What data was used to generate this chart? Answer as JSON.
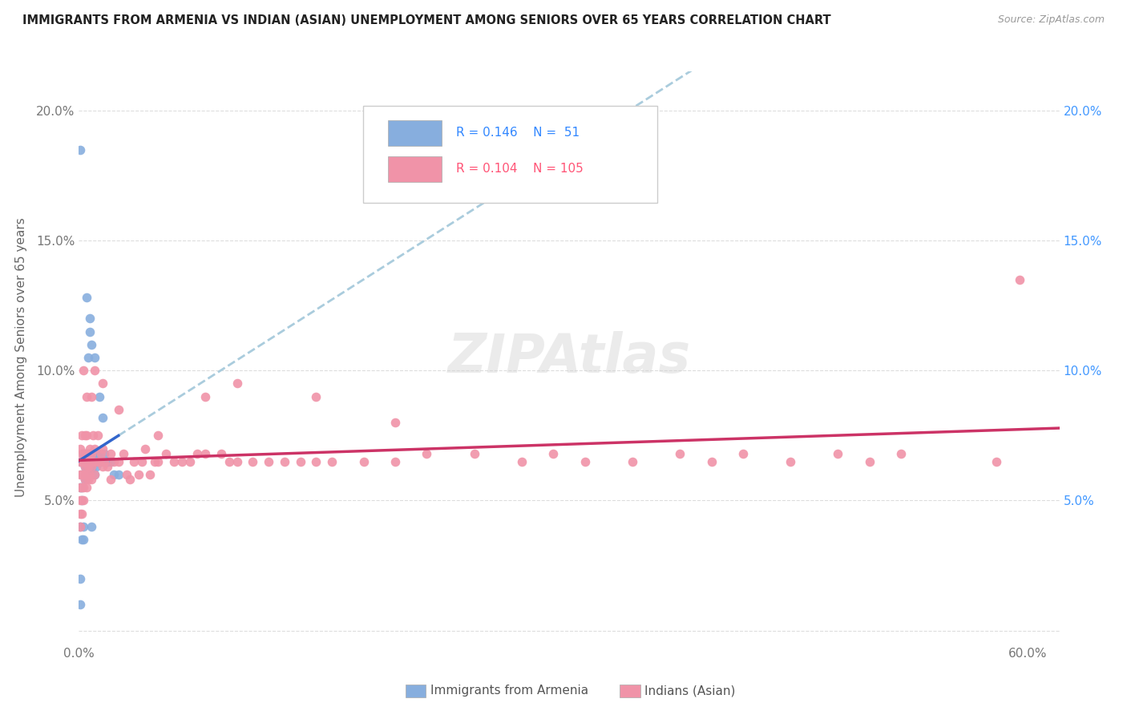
{
  "title": "IMMIGRANTS FROM ARMENIA VS INDIAN (ASIAN) UNEMPLOYMENT AMONG SENIORS OVER 65 YEARS CORRELATION CHART",
  "source": "Source: ZipAtlas.com",
  "ylabel": "Unemployment Among Seniors over 65 years",
  "xlabel_armenia": "Immigrants from Armenia",
  "xlabel_indian": "Indians (Asian)",
  "legend_armenia_R": "0.146",
  "legend_armenia_N": "51",
  "legend_indian_R": "0.104",
  "legend_indian_N": "105",
  "color_armenia": "#87AEDE",
  "color_indian": "#F093A8",
  "color_trendline_armenia": "#3366CC",
  "color_trendline_indian": "#CC3366",
  "color_trendline_dashed": "#AACCDD",
  "xlim": [
    0.0,
    0.62
  ],
  "ylim": [
    -0.005,
    0.215
  ],
  "yticks": [
    0.0,
    0.05,
    0.1,
    0.15,
    0.2
  ],
  "ytick_labels_left": [
    "",
    "5.0%",
    "10.0%",
    "15.0%",
    "20.0%"
  ],
  "ytick_labels_right": [
    "",
    "5.0%",
    "10.0%",
    "15.0%",
    "20.0%"
  ],
  "armenia_x": [
    0.001,
    0.001,
    0.001,
    0.001,
    0.001,
    0.002,
    0.002,
    0.002,
    0.002,
    0.003,
    0.003,
    0.003,
    0.003,
    0.004,
    0.004,
    0.004,
    0.005,
    0.005,
    0.005,
    0.006,
    0.006,
    0.007,
    0.007,
    0.007,
    0.008,
    0.008,
    0.009,
    0.01,
    0.01,
    0.011,
    0.011,
    0.012,
    0.013,
    0.014,
    0.015,
    0.016,
    0.018,
    0.02,
    0.022,
    0.025,
    0.001,
    0.002,
    0.003,
    0.004,
    0.005,
    0.006,
    0.007,
    0.008,
    0.01,
    0.012,
    0.018
  ],
  "armenia_y": [
    0.185,
    0.055,
    0.065,
    0.04,
    0.02,
    0.065,
    0.06,
    0.055,
    0.05,
    0.068,
    0.065,
    0.06,
    0.035,
    0.068,
    0.063,
    0.058,
    0.128,
    0.068,
    0.062,
    0.105,
    0.062,
    0.12,
    0.115,
    0.06,
    0.11,
    0.062,
    0.065,
    0.105,
    0.06,
    0.068,
    0.063,
    0.065,
    0.09,
    0.065,
    0.082,
    0.068,
    0.065,
    0.065,
    0.06,
    0.06,
    0.01,
    0.035,
    0.04,
    0.065,
    0.065,
    0.068,
    0.068,
    0.04,
    0.068,
    0.068,
    0.065
  ],
  "indian_x": [
    0.001,
    0.001,
    0.001,
    0.001,
    0.001,
    0.001,
    0.001,
    0.002,
    0.002,
    0.002,
    0.002,
    0.002,
    0.002,
    0.002,
    0.003,
    0.003,
    0.003,
    0.003,
    0.004,
    0.004,
    0.004,
    0.004,
    0.005,
    0.005,
    0.005,
    0.005,
    0.006,
    0.006,
    0.006,
    0.007,
    0.007,
    0.007,
    0.008,
    0.008,
    0.008,
    0.009,
    0.009,
    0.01,
    0.01,
    0.01,
    0.012,
    0.012,
    0.013,
    0.014,
    0.015,
    0.015,
    0.016,
    0.018,
    0.02,
    0.02,
    0.022,
    0.025,
    0.028,
    0.03,
    0.032,
    0.035,
    0.038,
    0.04,
    0.042,
    0.045,
    0.048,
    0.05,
    0.055,
    0.06,
    0.065,
    0.07,
    0.075,
    0.08,
    0.09,
    0.095,
    0.1,
    0.11,
    0.12,
    0.13,
    0.14,
    0.15,
    0.16,
    0.18,
    0.2,
    0.22,
    0.25,
    0.28,
    0.3,
    0.32,
    0.35,
    0.38,
    0.4,
    0.42,
    0.45,
    0.48,
    0.5,
    0.52,
    0.008,
    0.015,
    0.025,
    0.05,
    0.08,
    0.1,
    0.15,
    0.2,
    0.003,
    0.005,
    0.01,
    0.58,
    0.595
  ],
  "indian_y": [
    0.065,
    0.06,
    0.055,
    0.05,
    0.045,
    0.04,
    0.07,
    0.065,
    0.06,
    0.055,
    0.05,
    0.045,
    0.075,
    0.068,
    0.065,
    0.06,
    0.055,
    0.05,
    0.068,
    0.063,
    0.058,
    0.075,
    0.065,
    0.06,
    0.055,
    0.075,
    0.068,
    0.063,
    0.058,
    0.065,
    0.06,
    0.07,
    0.068,
    0.063,
    0.058,
    0.065,
    0.075,
    0.065,
    0.06,
    0.07,
    0.065,
    0.075,
    0.065,
    0.068,
    0.07,
    0.063,
    0.065,
    0.063,
    0.068,
    0.058,
    0.065,
    0.065,
    0.068,
    0.06,
    0.058,
    0.065,
    0.06,
    0.065,
    0.07,
    0.06,
    0.065,
    0.065,
    0.068,
    0.065,
    0.065,
    0.065,
    0.068,
    0.068,
    0.068,
    0.065,
    0.065,
    0.065,
    0.065,
    0.065,
    0.065,
    0.065,
    0.065,
    0.065,
    0.065,
    0.068,
    0.068,
    0.065,
    0.068,
    0.065,
    0.065,
    0.068,
    0.065,
    0.068,
    0.065,
    0.068,
    0.065,
    0.068,
    0.09,
    0.095,
    0.085,
    0.075,
    0.09,
    0.095,
    0.09,
    0.08,
    0.1,
    0.09,
    0.1,
    0.065,
    0.135
  ]
}
